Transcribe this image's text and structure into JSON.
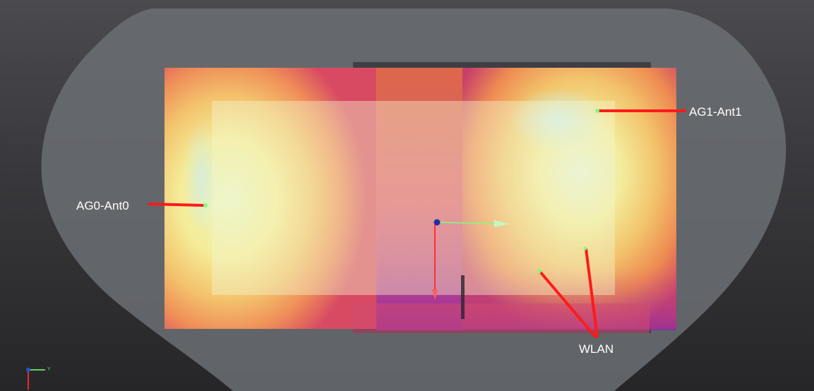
{
  "viewport": {
    "antenna_labels": {
      "ag0": "AG0-Ant0",
      "ag1": "AG1-Ant1",
      "wlan": "WLAN"
    },
    "axis_widget": {
      "y_label": "Y"
    },
    "colors": {
      "background_top": "#4a4a4f",
      "body_outline": "#6b6e73",
      "pointer": "#ff1a1a",
      "antenna_marker": "#7dff7d",
      "heat_low": "#f6f3a0",
      "heat_mid": "#f2a64c",
      "heat_high": "#d8405a",
      "heat_peak": "#8a2aa8"
    },
    "icons": {
      "origin": "origin-gizmo-icon",
      "axis_triad": "axis-triad-icon"
    }
  }
}
